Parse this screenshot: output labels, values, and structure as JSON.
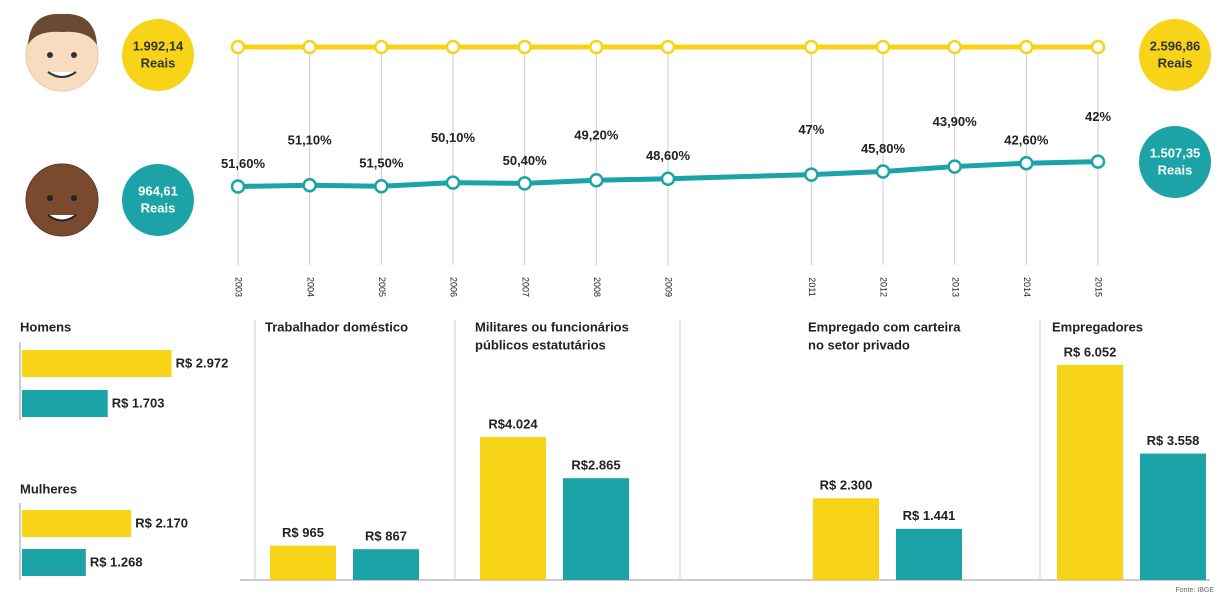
{
  "chart_data": [
    {
      "type": "line",
      "x": [
        2003,
        2004,
        2005,
        2006,
        2007,
        2008,
        2009,
        2011,
        2012,
        2013,
        2014,
        2015
      ],
      "xlim": [
        2003,
        2015
      ],
      "xticks": [
        2003,
        2004,
        2005,
        2006,
        2007,
        2008,
        2009,
        2011,
        2012,
        2013,
        2014,
        2015
      ],
      "values": [
        51.6,
        51.1,
        51.5,
        50.1,
        50.4,
        49.2,
        48.6,
        47,
        45.8,
        43.9,
        42.6,
        42
      ],
      "value_labels": [
        "51,60%",
        "51,10%",
        "51,50%",
        "50,10%",
        "50,40%",
        "49,20%",
        "48,60%",
        "47%",
        "45,80%",
        "43,90%",
        "42,60%",
        "42%"
      ],
      "ylim": [
        80,
        -5
      ],
      "color": "#1ba3a8",
      "reference_color": "#f7d417",
      "annotations": [
        {
          "value": "1.992,14",
          "unit": "Reais"
        },
        {
          "value": "964,61",
          "unit": "Reais"
        },
        {
          "value": "2.596,86",
          "unit": "Reais"
        },
        {
          "value": "1.507,35",
          "unit": "Reais"
        }
      ]
    },
    {
      "type": "hbar",
      "colors": [
        "#f7d417",
        "#1ba3a8"
      ],
      "xlim": [
        0,
        3000
      ],
      "groups": [
        {
          "label": "Homens",
          "values": [
            2972,
            1703
          ],
          "value_labels": [
            "R$ 2.972",
            "R$ 1.703"
          ]
        },
        {
          "label": "Mulheres",
          "values": [
            2170,
            1268
          ],
          "value_labels": [
            "R$ 2.170",
            "R$ 1.268"
          ]
        }
      ]
    },
    {
      "type": "bar",
      "colors": [
        "#f7d417",
        "#1ba3a8"
      ],
      "ylim": [
        0,
        6500
      ],
      "groups": [
        {
          "label": [
            "Trabalhador doméstico"
          ],
          "values": [
            965,
            867
          ],
          "value_labels": [
            "R$ 965",
            "R$ 867"
          ]
        },
        {
          "label": [
            "Militares ou funcionários",
            "públicos estatutários"
          ],
          "values": [
            4024,
            2865
          ],
          "value_labels": [
            "R$4.024",
            "R$2.865"
          ]
        },
        {
          "label": [
            "Empregado com carteira",
            "no setor privado"
          ],
          "values": [
            2300,
            1441
          ],
          "value_labels": [
            "R$ 2.300",
            "R$ 1.441"
          ]
        },
        {
          "label": [
            "Empregadores"
          ],
          "values": [
            6052,
            3558
          ],
          "value_labels": [
            "R$ 6.052",
            "R$ 3.558"
          ]
        }
      ]
    }
  ],
  "source": "Fonte: IBGE"
}
